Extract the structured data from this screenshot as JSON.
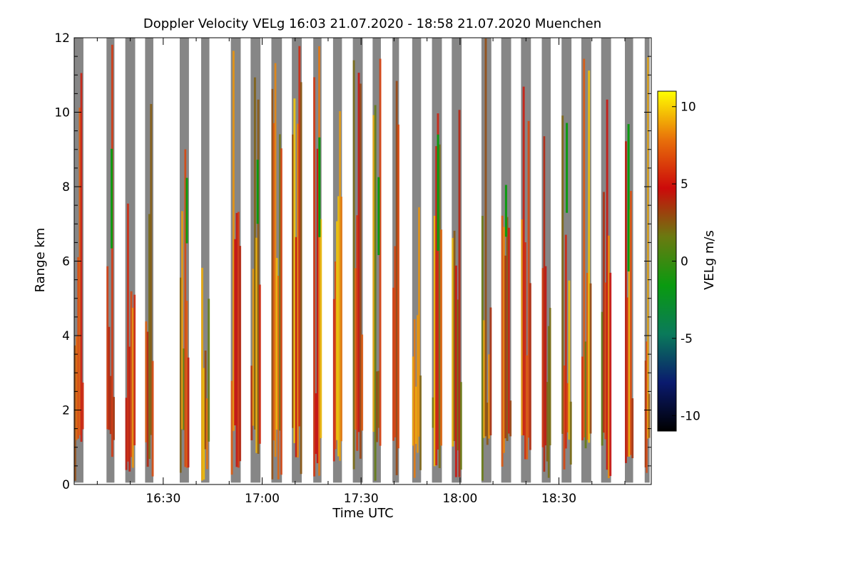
{
  "chart_data": {
    "type": "heatmap",
    "title": "Doppler Velocity VELg   16:03 21.07.2020 - 18:58 21.07.2020 Muenchen",
    "xlabel": "Time UTC",
    "ylabel": "Range km",
    "xlim_minutes_of_day": [
      963,
      1138
    ],
    "ylim": [
      0,
      12
    ],
    "x_ticks": [
      {
        "minute": 990,
        "label": "16:30"
      },
      {
        "minute": 1020,
        "label": "17:00"
      },
      {
        "minute": 1050,
        "label": "17:30"
      },
      {
        "minute": 1080,
        "label": "18:00"
      },
      {
        "minute": 1110,
        "label": "18:30"
      }
    ],
    "y_ticks": [
      {
        "value": 0,
        "label": "0"
      },
      {
        "value": 2,
        "label": "2"
      },
      {
        "value": 4,
        "label": "4"
      },
      {
        "value": 6,
        "label": "6"
      },
      {
        "value": 8,
        "label": "8"
      },
      {
        "value": 10,
        "label": "10"
      },
      {
        "value": 12,
        "label": "12"
      }
    ],
    "colorbar": {
      "label": "VELg m/s",
      "range": [
        -11,
        11
      ],
      "ticks": [
        {
          "value": 10,
          "label": "10"
        },
        {
          "value": 5,
          "label": "5"
        },
        {
          "value": 0,
          "label": "0"
        },
        {
          "value": -5,
          "label": "-5"
        },
        {
          "value": -10,
          "label": "-10"
        }
      ],
      "colors": [
        "#000000",
        "#0a1a6e",
        "#0a7a5a",
        "#0a9a10",
        "#6a7a10",
        "#cc0a0a",
        "#e8700a",
        "#ffff00"
      ]
    },
    "no_signal_color": "#868686",
    "scan_blocks": [
      {
        "start": 963.0,
        "end": 965.8,
        "top_km": 12.0
      },
      {
        "start": 972.8,
        "end": 975.2,
        "top_km": 12.0
      },
      {
        "start": 978.5,
        "end": 981.5,
        "top_km": 12.0
      },
      {
        "start": 984.5,
        "end": 987.0,
        "top_km": 12.0
      },
      {
        "start": 995.0,
        "end": 997.8,
        "top_km": 12.0
      },
      {
        "start": 1001.5,
        "end": 1004.0,
        "top_km": 12.0
      },
      {
        "start": 1010.5,
        "end": 1013.5,
        "top_km": 12.0
      },
      {
        "start": 1016.5,
        "end": 1019.5,
        "top_km": 12.0
      },
      {
        "start": 1022.8,
        "end": 1026.0,
        "top_km": 12.0
      },
      {
        "start": 1029.0,
        "end": 1032.0,
        "top_km": 12.0
      },
      {
        "start": 1035.5,
        "end": 1038.0,
        "top_km": 12.0
      },
      {
        "start": 1041.5,
        "end": 1044.2,
        "top_km": 12.0
      },
      {
        "start": 1047.5,
        "end": 1050.5,
        "top_km": 12.0
      },
      {
        "start": 1053.5,
        "end": 1056.0,
        "top_km": 12.0
      },
      {
        "start": 1059.5,
        "end": 1061.5,
        "top_km": 12.0
      },
      {
        "start": 1065.5,
        "end": 1068.2,
        "top_km": 12.0
      },
      {
        "start": 1071.5,
        "end": 1074.5,
        "top_km": 12.0
      },
      {
        "start": 1077.5,
        "end": 1080.5,
        "top_km": 12.0
      },
      {
        "start": 1086.5,
        "end": 1089.5,
        "top_km": 12.0
      },
      {
        "start": 1092.5,
        "end": 1095.5,
        "top_km": 12.0
      },
      {
        "start": 1098.5,
        "end": 1101.5,
        "top_km": 12.0
      },
      {
        "start": 1104.8,
        "end": 1107.5,
        "top_km": 12.0
      },
      {
        "start": 1110.8,
        "end": 1113.8,
        "top_km": 12.0
      },
      {
        "start": 1116.8,
        "end": 1119.8,
        "top_km": 12.0
      },
      {
        "start": 1122.8,
        "end": 1125.8,
        "top_km": 12.0
      },
      {
        "start": 1130.0,
        "end": 1132.5,
        "top_km": 12.0
      },
      {
        "start": 1136.0,
        "end": 1137.5,
        "top_km": 12.0
      }
    ]
  }
}
